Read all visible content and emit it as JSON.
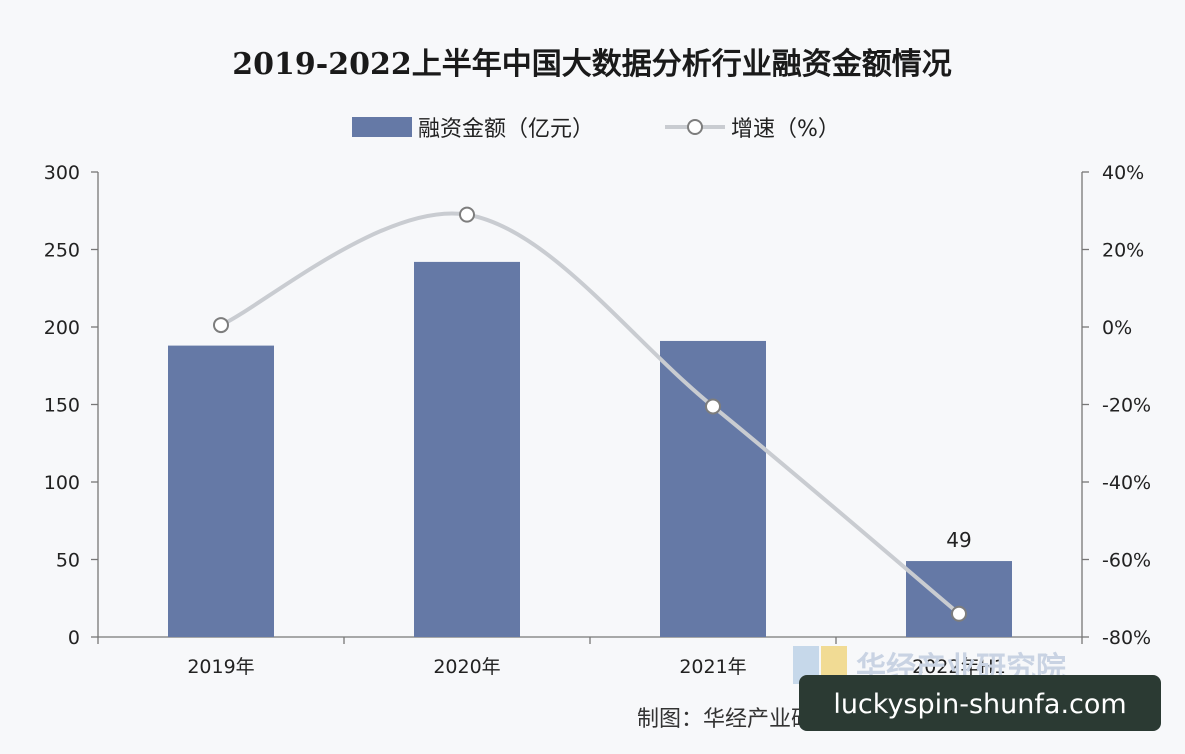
{
  "chart_data": {
    "type": "bar",
    "title": "2019-2022上半年中国大数据分析行业融资金额情况",
    "categories": [
      "2019年",
      "2020年",
      "2021年",
      "2022年H1"
    ],
    "series": [
      {
        "name": "融资金额（亿元）",
        "type": "bar",
        "axis": "left",
        "values": [
          188,
          242,
          191,
          49
        ]
      },
      {
        "name": "增速（%）",
        "type": "line",
        "axis": "right",
        "values": [
          0.5,
          29,
          -20.5,
          -74
        ]
      }
    ],
    "data_labels": [
      {
        "series": 0,
        "index": 3,
        "text": "49"
      }
    ],
    "y_left": {
      "ylim": [
        0,
        300
      ],
      "ticks": [
        0,
        50,
        100,
        150,
        200,
        250,
        300
      ],
      "tick_labels": [
        "0",
        "50",
        "100",
        "150",
        "200",
        "250",
        "300"
      ]
    },
    "y_right": {
      "ylim": [
        -80,
        40
      ],
      "ticks": [
        -80,
        -60,
        -40,
        -20,
        0,
        20,
        40
      ],
      "tick_labels": [
        "-80%",
        "-60%",
        "-40%",
        "-20%",
        "0%",
        "20%",
        "40%"
      ]
    },
    "legend_position": "top-center",
    "grid": false,
    "colors": {
      "bar": "#6579a6",
      "line": "#c9ccd1",
      "marker_stroke": "#7d7d7d"
    }
  },
  "watermark": "华经产业研究院",
  "source": "制图：华经产业研究院（www.huaon.com）",
  "footer_badge": "luckyspin-shunfa.com"
}
